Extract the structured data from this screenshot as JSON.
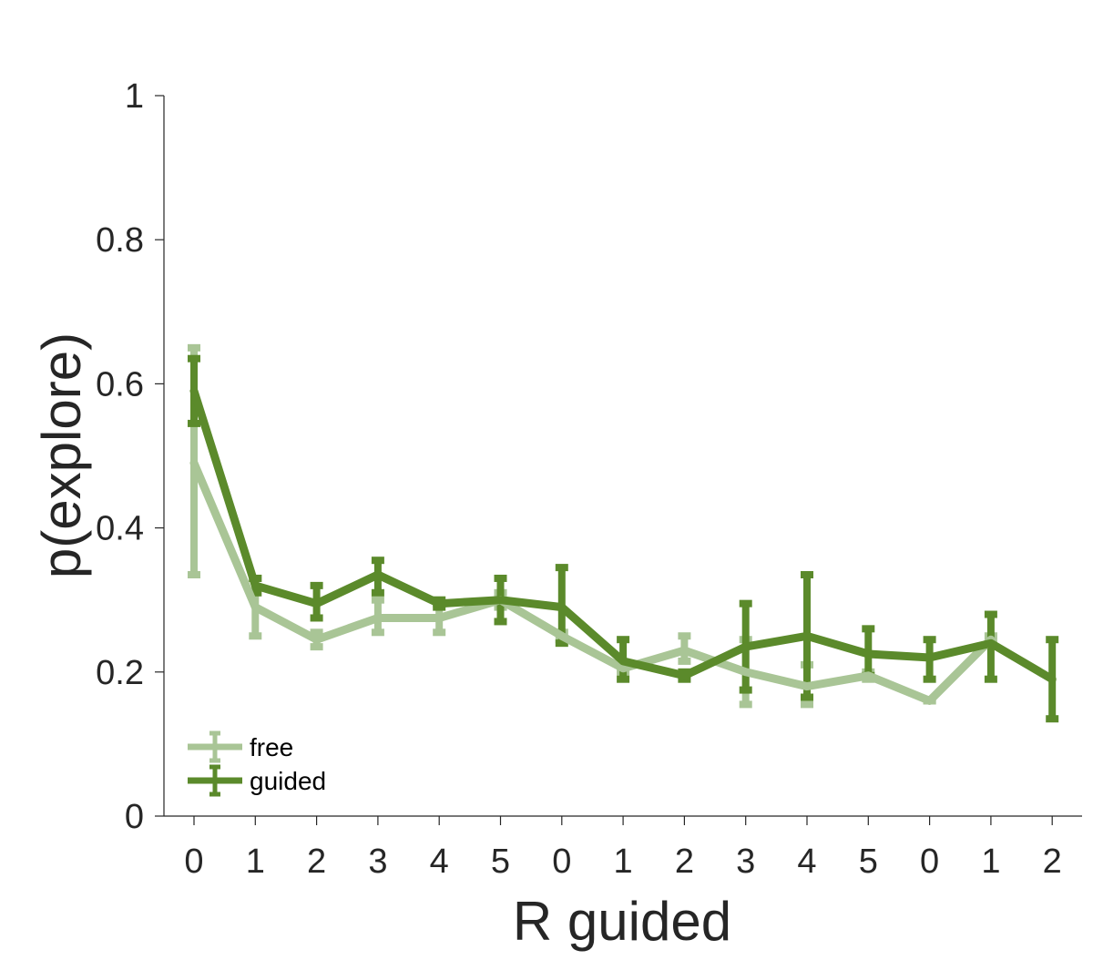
{
  "chart_data": {
    "type": "line",
    "xlabel": "R guided",
    "ylabel": "p(explore)",
    "categories": [
      "0",
      "1",
      "2",
      "3",
      "4",
      "5",
      "0",
      "1",
      "2",
      "3",
      "4",
      "5",
      "0",
      "1",
      "2"
    ],
    "ylim": [
      0,
      1
    ],
    "yticks": [
      "0",
      "0.2",
      "0.4",
      "0.6",
      "0.8",
      "1"
    ],
    "legend_position": "bottom-left",
    "grid": false,
    "series": [
      {
        "name": "free",
        "color": "#a9c596",
        "values": [
          0.49,
          0.29,
          0.245,
          0.275,
          0.275,
          0.3,
          0.25,
          0.205,
          0.23,
          0.2,
          0.18,
          0.195,
          0.16,
          0.245,
          null
        ],
        "err_low": [
          0.335,
          0.25,
          0.235,
          0.255,
          0.255,
          0.29,
          0.245,
          0.2,
          0.215,
          0.155,
          0.155,
          0.19,
          0.16,
          0.24,
          null
        ],
        "err_high": [
          0.65,
          0.33,
          0.255,
          0.3,
          0.295,
          0.31,
          0.255,
          0.21,
          0.25,
          0.245,
          0.21,
          0.2,
          0.16,
          0.25,
          null
        ]
      },
      {
        "name": "guided",
        "color": "#5b8a2b",
        "values": [
          0.59,
          0.32,
          0.295,
          0.335,
          0.295,
          0.3,
          0.29,
          0.215,
          0.195,
          0.235,
          0.25,
          0.225,
          0.22,
          0.24,
          0.19
        ],
        "err_low": [
          0.545,
          0.31,
          0.275,
          0.31,
          0.29,
          0.27,
          0.24,
          0.19,
          0.19,
          0.175,
          0.165,
          0.195,
          0.19,
          0.19,
          0.135
        ],
        "err_high": [
          0.635,
          0.33,
          0.32,
          0.355,
          0.3,
          0.33,
          0.345,
          0.245,
          0.2,
          0.295,
          0.335,
          0.26,
          0.245,
          0.28,
          0.245
        ]
      }
    ]
  }
}
